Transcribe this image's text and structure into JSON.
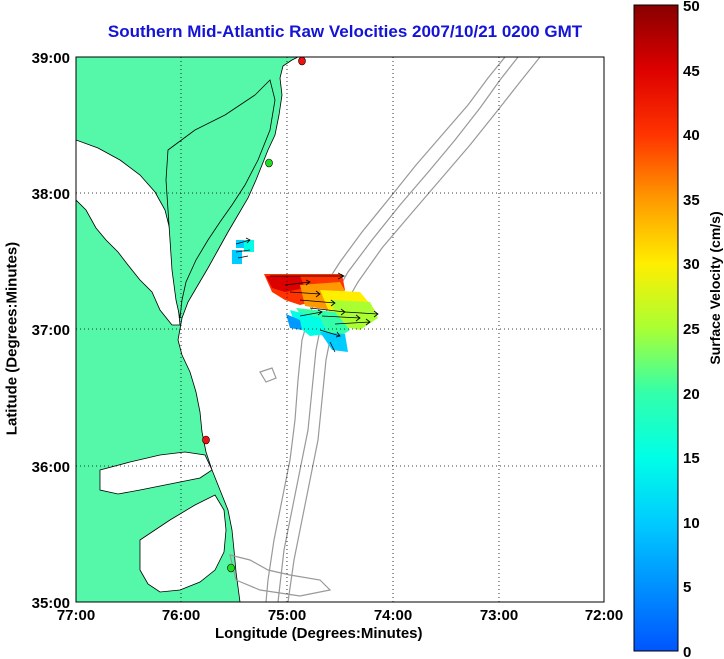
{
  "title": "Southern Mid-Atlantic Raw Velocities 2007/10/21 0200 GMT",
  "x_axis": {
    "label": "Longitude (Degrees:Minutes)",
    "ticks": [
      "77:00",
      "76:00",
      "75:00",
      "74:00",
      "73:00",
      "72:00"
    ]
  },
  "y_axis": {
    "label": "Latitude (Degrees:Minutes)",
    "ticks": [
      "39:00",
      "38:00",
      "37:00",
      "36:00",
      "35:00"
    ]
  },
  "colorbar": {
    "label": "Surface Velocity (cm/s)",
    "ticks": [
      "50",
      "45",
      "40",
      "35",
      "30",
      "25",
      "20",
      "15",
      "10",
      "5",
      "0"
    ],
    "min": 0,
    "max": 50
  },
  "colors": {
    "land": "#55f7a8",
    "title": "#1414d6",
    "bathymetry": "#999999",
    "station_green": "#22dd22",
    "station_red": "#ee1111"
  },
  "stations": [
    {
      "color": "red",
      "lon": -74.87,
      "lat": 39.0
    },
    {
      "color": "green",
      "lon": -75.09,
      "lat": 38.2
    },
    {
      "color": "red",
      "lon": -75.73,
      "lat": 36.18
    },
    {
      "color": "green",
      "lon": -75.46,
      "lat": 35.25
    }
  ]
}
